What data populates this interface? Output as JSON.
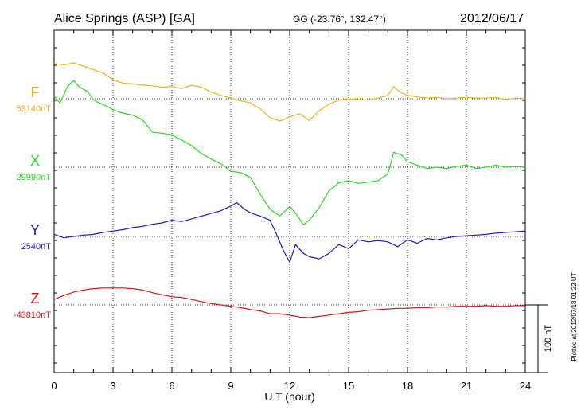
{
  "header": {
    "station": "Alice Springs (ASP)  [GA]",
    "coords": "GG (-23.76°, 132.47°)",
    "date": "2012/06/17"
  },
  "side_note": "Plotted at 2012/07/18 01:22 UT",
  "scale_label": "100 nT",
  "chart_data": {
    "type": "line",
    "title": "",
    "xlabel": "U T (hour)",
    "xlim": [
      0,
      24
    ],
    "x_ticks": [
      0,
      3,
      6,
      9,
      12,
      15,
      18,
      21,
      24
    ],
    "grid": true,
    "series": [
      {
        "name": "F",
        "baseline_label": "53140nT",
        "color": "#f0b020",
        "values_nT_rel_baseline": [
          [
            0,
            52
          ],
          [
            0.5,
            50
          ],
          [
            1.0,
            53
          ],
          [
            1.5,
            48
          ],
          [
            2.0,
            43
          ],
          [
            2.5,
            38
          ],
          [
            3.0,
            28
          ],
          [
            3.5,
            23
          ],
          [
            4.0,
            22
          ],
          [
            4.5,
            20
          ],
          [
            5.0,
            19
          ],
          [
            5.5,
            17
          ],
          [
            6.0,
            18
          ],
          [
            6.5,
            15
          ],
          [
            7.0,
            20
          ],
          [
            7.5,
            17
          ],
          [
            8.0,
            10
          ],
          [
            8.5,
            5
          ],
          [
            9.0,
            1
          ],
          [
            9.5,
            -3
          ],
          [
            10.0,
            -6
          ],
          [
            10.5,
            -15
          ],
          [
            11.0,
            -28
          ],
          [
            11.5,
            -33
          ],
          [
            12.0,
            -27
          ],
          [
            12.5,
            -22
          ],
          [
            13.0,
            -32
          ],
          [
            13.5,
            -18
          ],
          [
            14.0,
            -8
          ],
          [
            14.5,
            -2
          ],
          [
            15.0,
            0
          ],
          [
            15.5,
            -1
          ],
          [
            16.0,
            -2
          ],
          [
            16.5,
            1
          ],
          [
            17.0,
            5
          ],
          [
            17.3,
            18
          ],
          [
            17.6,
            10
          ],
          [
            18.0,
            5
          ],
          [
            18.5,
            3
          ],
          [
            19.0,
            1
          ],
          [
            19.5,
            2
          ],
          [
            20.0,
            0
          ],
          [
            20.5,
            1
          ],
          [
            21.0,
            2
          ],
          [
            21.5,
            1
          ],
          [
            22.0,
            1
          ],
          [
            22.5,
            2
          ],
          [
            23.0,
            -1
          ],
          [
            23.5,
            1
          ],
          [
            24.0,
            0
          ]
        ]
      },
      {
        "name": "X",
        "baseline_label": "29990nT",
        "color": "#22dd22",
        "values_nT_rel_baseline": [
          [
            0,
            105
          ],
          [
            0.3,
            95
          ],
          [
            0.7,
            120
          ],
          [
            1.0,
            128
          ],
          [
            1.3,
            118
          ],
          [
            1.7,
            112
          ],
          [
            2.0,
            100
          ],
          [
            2.3,
            95
          ],
          [
            2.7,
            90
          ],
          [
            3.0,
            85
          ],
          [
            3.5,
            80
          ],
          [
            4.0,
            77
          ],
          [
            4.5,
            70
          ],
          [
            5.0,
            52
          ],
          [
            5.5,
            50
          ],
          [
            6.0,
            48
          ],
          [
            6.5,
            40
          ],
          [
            7.0,
            32
          ],
          [
            7.5,
            20
          ],
          [
            8.0,
            12
          ],
          [
            8.5,
            5
          ],
          [
            9.0,
            -6
          ],
          [
            9.5,
            -8
          ],
          [
            10.0,
            -15
          ],
          [
            10.5,
            -40
          ],
          [
            11.0,
            -62
          ],
          [
            11.5,
            -72
          ],
          [
            12.0,
            -58
          ],
          [
            12.3,
            -68
          ],
          [
            12.7,
            -85
          ],
          [
            13.0,
            -78
          ],
          [
            13.5,
            -60
          ],
          [
            14.0,
            -35
          ],
          [
            14.5,
            -23
          ],
          [
            15.0,
            -20
          ],
          [
            15.5,
            -24
          ],
          [
            16.0,
            -22
          ],
          [
            16.5,
            -20
          ],
          [
            17.0,
            -10
          ],
          [
            17.3,
            22
          ],
          [
            17.7,
            18
          ],
          [
            18.0,
            8
          ],
          [
            18.5,
            3
          ],
          [
            19.0,
            -2
          ],
          [
            19.5,
            0
          ],
          [
            20.0,
            -2
          ],
          [
            20.5,
            1
          ],
          [
            21.0,
            3
          ],
          [
            21.5,
            -2
          ],
          [
            22.0,
            0
          ],
          [
            22.5,
            3
          ],
          [
            23.0,
            0
          ],
          [
            23.5,
            1
          ],
          [
            24.0,
            0
          ]
        ]
      },
      {
        "name": "Y",
        "baseline_label": "2540nT",
        "color": "#1a1acc",
        "values_nT_rel_baseline": [
          [
            0,
            3
          ],
          [
            0.5,
            -2
          ],
          [
            1.0,
            0
          ],
          [
            1.5,
            2
          ],
          [
            2.0,
            3
          ],
          [
            2.5,
            6
          ],
          [
            3.0,
            8
          ],
          [
            3.5,
            10
          ],
          [
            4.0,
            13
          ],
          [
            4.5,
            15
          ],
          [
            5.0,
            18
          ],
          [
            5.5,
            20
          ],
          [
            6.0,
            24
          ],
          [
            6.5,
            22
          ],
          [
            7.0,
            26
          ],
          [
            7.5,
            30
          ],
          [
            8.0,
            34
          ],
          [
            8.5,
            38
          ],
          [
            9.0,
            45
          ],
          [
            9.3,
            50
          ],
          [
            9.7,
            40
          ],
          [
            10.0,
            35
          ],
          [
            10.5,
            30
          ],
          [
            11.0,
            24
          ],
          [
            11.3,
            5
          ],
          [
            11.7,
            -22
          ],
          [
            12.0,
            -38
          ],
          [
            12.3,
            -12
          ],
          [
            12.7,
            -25
          ],
          [
            13.0,
            -30
          ],
          [
            13.5,
            -33
          ],
          [
            14.0,
            -25
          ],
          [
            14.5,
            -12
          ],
          [
            15.0,
            -18
          ],
          [
            15.5,
            -5
          ],
          [
            16.0,
            -8
          ],
          [
            16.5,
            -6
          ],
          [
            17.0,
            -8
          ],
          [
            17.5,
            -15
          ],
          [
            18.0,
            -5
          ],
          [
            18.5,
            -10
          ],
          [
            19.0,
            -3
          ],
          [
            19.5,
            -5
          ],
          [
            20.0,
            -2
          ],
          [
            20.5,
            0
          ],
          [
            21.0,
            1
          ],
          [
            21.5,
            2
          ],
          [
            22.0,
            3
          ],
          [
            22.5,
            5
          ],
          [
            23.0,
            6
          ],
          [
            23.5,
            7
          ],
          [
            24.0,
            8
          ]
        ]
      },
      {
        "name": "Z",
        "baseline_label": "-43810nT",
        "color": "#dd1111",
        "values_nT_rel_baseline": [
          [
            0,
            8
          ],
          [
            0.5,
            14
          ],
          [
            1.0,
            19
          ],
          [
            1.5,
            22
          ],
          [
            2.0,
            24
          ],
          [
            2.5,
            25
          ],
          [
            3.0,
            25
          ],
          [
            3.5,
            25
          ],
          [
            4.0,
            24
          ],
          [
            4.5,
            22
          ],
          [
            5.0,
            18
          ],
          [
            5.5,
            15
          ],
          [
            6.0,
            12
          ],
          [
            6.5,
            11
          ],
          [
            7.0,
            8
          ],
          [
            7.5,
            5
          ],
          [
            8.0,
            2
          ],
          [
            8.5,
            0
          ],
          [
            9.0,
            -2
          ],
          [
            9.5,
            -4
          ],
          [
            10.0,
            -7
          ],
          [
            10.5,
            -9
          ],
          [
            11.0,
            -13
          ],
          [
            11.5,
            -13
          ],
          [
            12.0,
            -15
          ],
          [
            12.5,
            -18
          ],
          [
            13.0,
            -19
          ],
          [
            13.5,
            -17
          ],
          [
            14.0,
            -15
          ],
          [
            14.5,
            -13
          ],
          [
            15.0,
            -11
          ],
          [
            15.5,
            -10
          ],
          [
            16.0,
            -8
          ],
          [
            16.5,
            -7
          ],
          [
            17.0,
            -6
          ],
          [
            17.5,
            -5
          ],
          [
            18.0,
            -5
          ],
          [
            18.5,
            -4
          ],
          [
            19.0,
            -4
          ],
          [
            19.5,
            -3
          ],
          [
            20.0,
            -3
          ],
          [
            20.5,
            -2
          ],
          [
            21.0,
            -2
          ],
          [
            21.5,
            -2
          ],
          [
            22.0,
            -1
          ],
          [
            22.5,
            -2
          ],
          [
            23.0,
            -2
          ],
          [
            23.5,
            -1
          ],
          [
            24.0,
            -1
          ]
        ]
      }
    ]
  }
}
